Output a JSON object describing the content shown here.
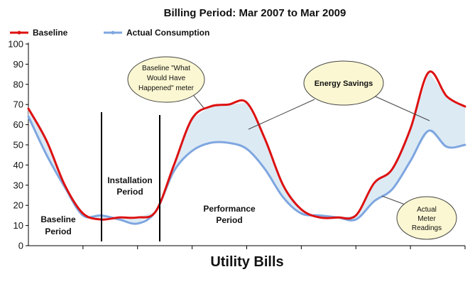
{
  "chart_data": {
    "type": "line",
    "title": "Billing Period: Mar 2007 to Mar 2009",
    "xlabel": "Utility Bills",
    "ylabel": "",
    "ylim": [
      0,
      100
    ],
    "yticks": [
      0,
      10,
      20,
      30,
      40,
      50,
      60,
      70,
      80,
      90,
      100
    ],
    "x_count": 25,
    "x": [
      0,
      1,
      2,
      3,
      4,
      5,
      6,
      7,
      8,
      9,
      10,
      11,
      12,
      13,
      14,
      15,
      16,
      17,
      18,
      19,
      20,
      21,
      22,
      23,
      24
    ],
    "series": [
      {
        "name": "Baseline",
        "color": "#dd1111",
        "values": [
          68,
          52,
          30,
          16,
          13,
          14,
          14,
          17,
          40,
          63,
          69,
          70,
          71,
          53,
          30,
          18,
          14,
          14,
          15,
          31,
          38,
          58,
          86,
          74,
          69
        ]
      },
      {
        "name": "Actual Consumption",
        "color": "#7ea6e0",
        "values": [
          64,
          45,
          29,
          15,
          15,
          13,
          11,
          17,
          37,
          47,
          51,
          51,
          48,
          38,
          24,
          16,
          15,
          14,
          13,
          22,
          28,
          42,
          57,
          49,
          50
        ]
      }
    ],
    "shade_color": "#dceaf4",
    "legend_position": "top-left",
    "grid": false,
    "annotations": {
      "baseline_region": [
        "Baseline",
        "Period"
      ],
      "installation_region": [
        "Installation",
        "Period"
      ],
      "performance_region": [
        "Performance",
        "Period"
      ],
      "callout_baseline": [
        "Baseline \"What",
        "Would Have",
        "Happened\" meter"
      ],
      "callout_savings": "Energy Savings",
      "callout_actual": [
        "Actual",
        "Meter",
        "Readings"
      ]
    }
  }
}
